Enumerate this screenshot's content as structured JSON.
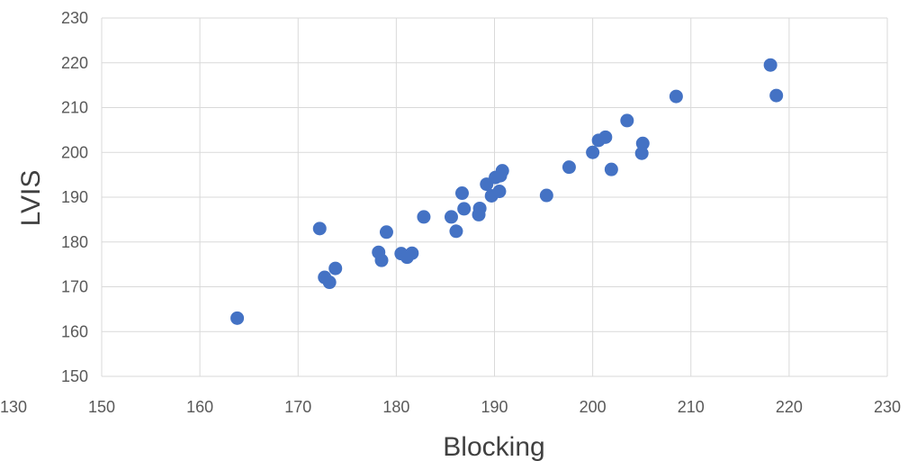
{
  "chart_data": {
    "type": "scatter",
    "title": "",
    "xlabel": "Blocking",
    "ylabel": "LVIS",
    "xlim": [
      150,
      230
    ],
    "ylim": [
      150,
      230
    ],
    "x_ticks": [
      150,
      160,
      170,
      180,
      190,
      200,
      210,
      220,
      230
    ],
    "y_ticks": [
      150,
      160,
      170,
      180,
      190,
      200,
      210,
      220,
      230
    ],
    "x_tick_labels": [
      "150",
      "160",
      "170",
      "180",
      "190",
      "200",
      "210",
      "220",
      "230"
    ],
    "y_tick_labels": [
      "150",
      "160",
      "170",
      "180",
      "190",
      "200",
      "210",
      "220",
      "230"
    ],
    "cut_off_left_label": "130",
    "grid": true,
    "legend": "none",
    "marker_color": "#4472c4",
    "series": [
      {
        "points": [
          [
            163.8,
            163.0
          ],
          [
            172.2,
            183.0
          ],
          [
            172.7,
            172.1
          ],
          [
            173.2,
            171.0
          ],
          [
            173.8,
            174.1
          ],
          [
            178.2,
            177.7
          ],
          [
            178.5,
            175.9
          ],
          [
            179.0,
            182.2
          ],
          [
            180.5,
            177.4
          ],
          [
            181.1,
            176.6
          ],
          [
            181.6,
            177.5
          ],
          [
            182.8,
            185.6
          ],
          [
            185.6,
            185.6
          ],
          [
            186.1,
            182.4
          ],
          [
            186.7,
            190.9
          ],
          [
            186.9,
            187.4
          ],
          [
            188.4,
            186.1
          ],
          [
            188.5,
            187.5
          ],
          [
            189.2,
            192.9
          ],
          [
            189.7,
            190.3
          ],
          [
            190.1,
            194.4
          ],
          [
            190.5,
            191.3
          ],
          [
            190.6,
            194.8
          ],
          [
            190.8,
            195.9
          ],
          [
            195.3,
            190.4
          ],
          [
            197.6,
            196.7
          ],
          [
            200.0,
            200.0
          ],
          [
            200.6,
            202.7
          ],
          [
            201.3,
            203.4
          ],
          [
            201.9,
            196.2
          ],
          [
            203.5,
            207.1
          ],
          [
            205.0,
            199.8
          ],
          [
            205.1,
            202.0
          ],
          [
            208.5,
            212.5
          ],
          [
            218.1,
            219.5
          ],
          [
            218.7,
            212.7
          ]
        ]
      }
    ]
  }
}
